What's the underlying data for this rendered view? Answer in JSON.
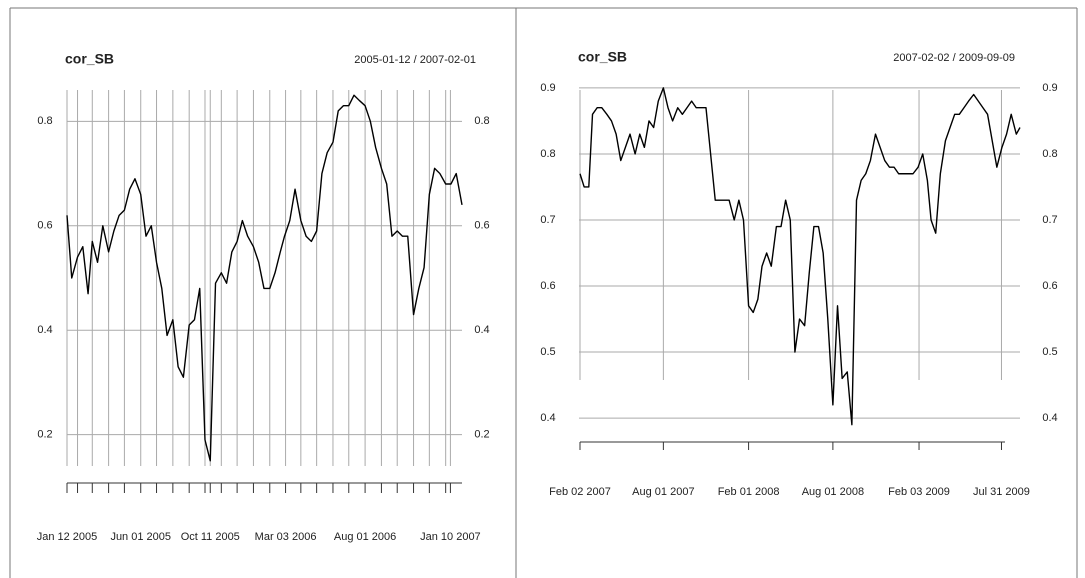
{
  "chart_data": [
    {
      "type": "line",
      "title": "cor_SB",
      "subtitle": "2005-01-12 / 2007-02-01",
      "color": "#000000",
      "grid": true,
      "xlim": [
        "2005-01-12",
        "2007-02-01"
      ],
      "ylim": [
        0.14,
        0.86
      ],
      "yticks": [
        0.2,
        0.4,
        0.6,
        0.8
      ],
      "xticks": [
        {
          "value": "2005-01-12",
          "label": "Jan 12 2005"
        },
        {
          "value": "2005-06-01",
          "label": "Jun 01 2005"
        },
        {
          "value": "2005-10-11",
          "label": "Oct 11 2005"
        },
        {
          "value": "2006-03-03",
          "label": "Mar 03 2006"
        },
        {
          "value": "2006-08-01",
          "label": "Aug 01 2006"
        },
        {
          "value": "2007-01-10",
          "label": "Jan 10 2007"
        }
      ],
      "xminor": [
        "2005-02-01",
        "2005-03-01",
        "2005-04-01",
        "2005-05-01",
        "2005-07-01",
        "2005-08-01",
        "2005-09-01",
        "2005-10-01",
        "2005-11-01",
        "2005-12-01",
        "2006-01-01",
        "2006-02-01",
        "2006-04-01",
        "2006-05-01",
        "2006-06-01",
        "2006-07-01",
        "2006-09-01",
        "2006-10-01",
        "2006-11-01",
        "2006-12-01",
        "2007-01-01"
      ],
      "x": [
        "2005-01-12",
        "2005-01-21",
        "2005-02-01",
        "2005-02-11",
        "2005-02-21",
        "2005-03-01",
        "2005-03-11",
        "2005-03-21",
        "2005-04-01",
        "2005-04-11",
        "2005-04-21",
        "2005-05-01",
        "2005-05-11",
        "2005-05-21",
        "2005-06-01",
        "2005-06-11",
        "2005-06-21",
        "2005-07-01",
        "2005-07-11",
        "2005-07-21",
        "2005-08-01",
        "2005-08-11",
        "2005-08-21",
        "2005-09-01",
        "2005-09-11",
        "2005-09-21",
        "2005-10-01",
        "2005-10-11",
        "2005-10-21",
        "2005-11-01",
        "2005-11-11",
        "2005-11-21",
        "2005-12-01",
        "2005-12-11",
        "2005-12-21",
        "2006-01-01",
        "2006-01-11",
        "2006-01-21",
        "2006-02-01",
        "2006-02-11",
        "2006-02-21",
        "2006-03-01",
        "2006-03-11",
        "2006-03-21",
        "2006-04-01",
        "2006-04-11",
        "2006-04-21",
        "2006-05-01",
        "2006-05-11",
        "2006-05-21",
        "2006-06-01",
        "2006-06-11",
        "2006-06-21",
        "2006-07-01",
        "2006-07-11",
        "2006-07-21",
        "2006-08-01",
        "2006-08-11",
        "2006-08-21",
        "2006-09-01",
        "2006-09-11",
        "2006-09-21",
        "2006-10-01",
        "2006-10-11",
        "2006-10-21",
        "2006-11-01",
        "2006-11-11",
        "2006-11-21",
        "2006-12-01",
        "2006-12-11",
        "2006-12-21",
        "2007-01-01",
        "2007-01-11",
        "2007-01-21",
        "2007-02-01"
      ],
      "values": [
        0.62,
        0.5,
        0.54,
        0.56,
        0.47,
        0.57,
        0.53,
        0.6,
        0.55,
        0.59,
        0.62,
        0.63,
        0.67,
        0.69,
        0.66,
        0.58,
        0.6,
        0.53,
        0.48,
        0.39,
        0.42,
        0.33,
        0.31,
        0.41,
        0.42,
        0.48,
        0.19,
        0.15,
        0.49,
        0.51,
        0.49,
        0.55,
        0.57,
        0.61,
        0.58,
        0.56,
        0.53,
        0.48,
        0.48,
        0.51,
        0.55,
        0.58,
        0.61,
        0.67,
        0.61,
        0.58,
        0.57,
        0.59,
        0.7,
        0.74,
        0.76,
        0.82,
        0.83,
        0.83,
        0.85,
        0.84,
        0.83,
        0.8,
        0.75,
        0.71,
        0.68,
        0.58,
        0.59,
        0.58,
        0.58,
        0.43,
        0.48,
        0.52,
        0.66,
        0.71,
        0.7,
        0.68,
        0.68,
        0.7,
        0.64
      ]
    },
    {
      "type": "line",
      "title": "cor_SB",
      "subtitle": "2007-02-02 / 2009-09-09",
      "color": "#000000",
      "grid": true,
      "xlim": [
        "2007-02-02",
        "2009-09-09"
      ],
      "ylim": [
        0.385,
        0.915
      ],
      "yticks": [
        0.4,
        0.5,
        0.6,
        0.7,
        0.8,
        0.9
      ],
      "xticks": [
        {
          "value": "2007-02-02",
          "label": "Feb 02 2007"
        },
        {
          "value": "2007-08-01",
          "label": "Aug 01 2007"
        },
        {
          "value": "2008-02-01",
          "label": "Feb 01 2008"
        },
        {
          "value": "2008-08-01",
          "label": "Aug 01 2008"
        },
        {
          "value": "2009-02-03",
          "label": "Feb 03 2009"
        },
        {
          "value": "2009-07-31",
          "label": "Jul 31 2009"
        }
      ],
      "x": [
        "2007-02-02",
        "2007-02-11",
        "2007-02-21",
        "2007-03-01",
        "2007-03-11",
        "2007-03-21",
        "2007-04-01",
        "2007-04-11",
        "2007-04-21",
        "2007-05-01",
        "2007-05-11",
        "2007-05-21",
        "2007-06-01",
        "2007-06-11",
        "2007-06-21",
        "2007-07-01",
        "2007-07-11",
        "2007-07-21",
        "2007-08-01",
        "2007-08-11",
        "2007-08-21",
        "2007-09-01",
        "2007-09-11",
        "2007-09-21",
        "2007-10-01",
        "2007-10-11",
        "2007-10-21",
        "2007-11-01",
        "2007-11-11",
        "2007-11-21",
        "2007-12-01",
        "2007-12-11",
        "2007-12-21",
        "2008-01-01",
        "2008-01-11",
        "2008-01-21",
        "2008-02-01",
        "2008-02-11",
        "2008-02-21",
        "2008-03-01",
        "2008-03-11",
        "2008-03-21",
        "2008-04-01",
        "2008-04-11",
        "2008-04-21",
        "2008-05-01",
        "2008-05-11",
        "2008-05-21",
        "2008-06-01",
        "2008-06-11",
        "2008-06-21",
        "2008-07-01",
        "2008-07-11",
        "2008-07-21",
        "2008-08-01",
        "2008-08-11",
        "2008-08-21",
        "2008-09-01",
        "2008-09-11",
        "2008-09-21",
        "2008-10-01",
        "2008-10-11",
        "2008-10-21",
        "2008-11-01",
        "2008-11-11",
        "2008-11-21",
        "2008-12-01",
        "2008-12-11",
        "2008-12-21",
        "2009-01-01",
        "2009-01-11",
        "2009-01-21",
        "2009-02-01",
        "2009-02-11",
        "2009-02-21",
        "2009-03-01",
        "2009-03-11",
        "2009-03-21",
        "2009-04-01",
        "2009-04-11",
        "2009-04-21",
        "2009-05-01",
        "2009-05-11",
        "2009-05-21",
        "2009-06-01",
        "2009-06-11",
        "2009-06-21",
        "2009-07-01",
        "2009-07-11",
        "2009-07-21",
        "2009-08-01",
        "2009-08-11",
        "2009-08-21",
        "2009-09-01",
        "2009-09-09"
      ],
      "values": [
        0.77,
        0.75,
        0.75,
        0.86,
        0.87,
        0.87,
        0.86,
        0.85,
        0.83,
        0.79,
        0.81,
        0.83,
        0.8,
        0.83,
        0.81,
        0.85,
        0.84,
        0.88,
        0.9,
        0.87,
        0.85,
        0.87,
        0.86,
        0.87,
        0.88,
        0.87,
        0.87,
        0.87,
        0.8,
        0.73,
        0.73,
        0.73,
        0.73,
        0.7,
        0.73,
        0.7,
        0.57,
        0.56,
        0.58,
        0.63,
        0.65,
        0.63,
        0.69,
        0.69,
        0.73,
        0.7,
        0.5,
        0.55,
        0.54,
        0.62,
        0.69,
        0.69,
        0.65,
        0.55,
        0.42,
        0.57,
        0.46,
        0.47,
        0.39,
        0.73,
        0.76,
        0.77,
        0.79,
        0.83,
        0.81,
        0.79,
        0.78,
        0.78,
        0.77,
        0.77,
        0.77,
        0.77,
        0.78,
        0.8,
        0.76,
        0.7,
        0.68,
        0.77,
        0.82,
        0.84,
        0.86,
        0.86,
        0.87,
        0.88,
        0.89,
        0.88,
        0.87,
        0.86,
        0.82,
        0.78,
        0.81,
        0.83,
        0.86,
        0.83,
        0.84
      ]
    }
  ]
}
